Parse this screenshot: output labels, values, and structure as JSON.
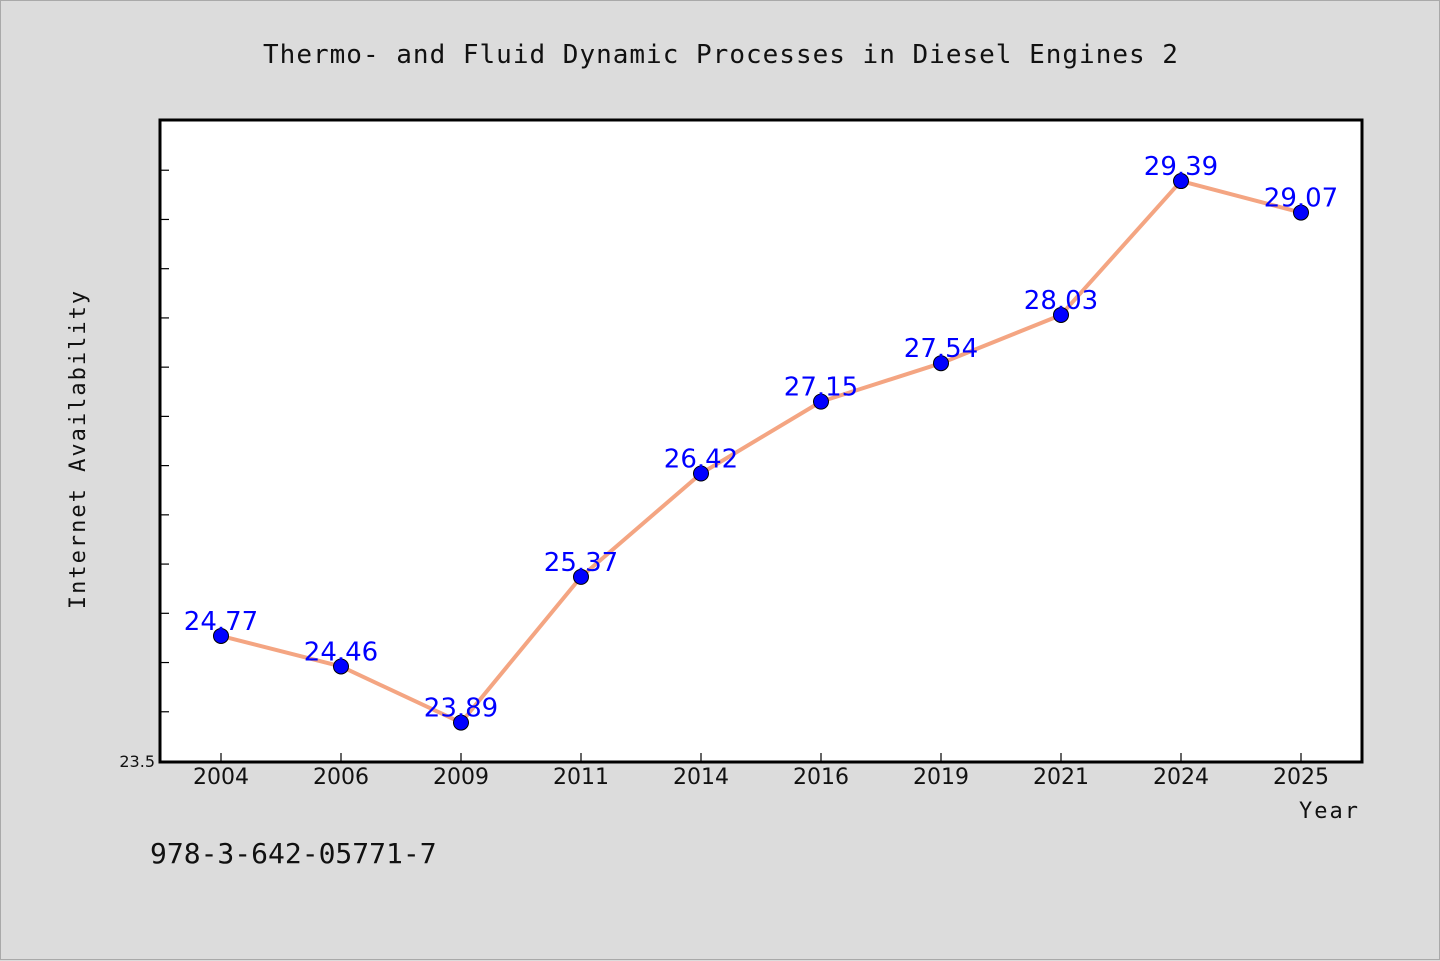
{
  "chart_data": {
    "type": "line",
    "title": "Thermo- and Fluid Dynamic Processes in Diesel Engines 2",
    "xlabel": "Year",
    "ylabel": "Internet Availability",
    "categories": [
      "2004",
      "2006",
      "2009",
      "2011",
      "2014",
      "2016",
      "2019",
      "2021",
      "2024",
      "2025"
    ],
    "series": [
      {
        "values": [
          24.77,
          24.46,
          23.89,
          25.37,
          26.42,
          27.15,
          27.54,
          28.03,
          29.39,
          29.07
        ],
        "line_color": "#f4a582",
        "marker_color": "#0000ff",
        "data_labels": [
          "24.77",
          "24.46",
          "23.89",
          "25.37",
          "26.42",
          "27.15",
          "27.54",
          "28.03",
          "29.39",
          "29.07"
        ]
      }
    ],
    "ylim": [
      23.5,
      30.0
    ],
    "y_tick_labels": [
      "23.5"
    ],
    "y_minor_tick_step": 0.5,
    "grid": false,
    "colors": {
      "background": "#dcdcdc",
      "plot_background": "#ffffff",
      "axis": "#000000"
    }
  },
  "footnote": "978-3-642-05771-7"
}
